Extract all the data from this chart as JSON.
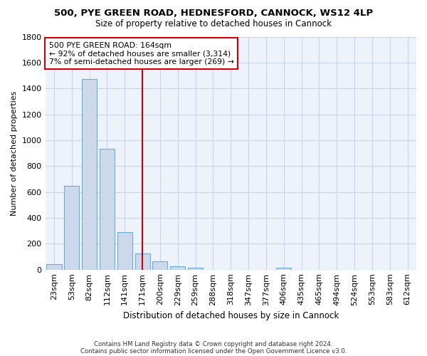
{
  "title1": "500, PYE GREEN ROAD, HEDNESFORD, CANNOCK, WS12 4LP",
  "title2": "Size of property relative to detached houses in Cannock",
  "xlabel": "Distribution of detached houses by size in Cannock",
  "ylabel": "Number of detached properties",
  "bar_labels": [
    "23sqm",
    "53sqm",
    "82sqm",
    "112sqm",
    "141sqm",
    "171sqm",
    "200sqm",
    "229sqm",
    "259sqm",
    "288sqm",
    "318sqm",
    "347sqm",
    "377sqm",
    "406sqm",
    "435sqm",
    "465sqm",
    "494sqm",
    "524sqm",
    "553sqm",
    "583sqm",
    "612sqm"
  ],
  "bar_values": [
    40,
    650,
    1470,
    935,
    290,
    125,
    65,
    25,
    15,
    0,
    0,
    0,
    0,
    15,
    0,
    0,
    0,
    0,
    0,
    0,
    0
  ],
  "bar_color": "#ccd9ea",
  "bar_edge_color": "#6aaed6",
  "grid_color": "#c8d4e8",
  "vline_x_index": 5,
  "vline_color": "#cc0000",
  "ylim": [
    0,
    1800
  ],
  "yticks": [
    0,
    200,
    400,
    600,
    800,
    1000,
    1200,
    1400,
    1600,
    1800
  ],
  "annotation_text": "500 PYE GREEN ROAD: 164sqm\n← 92% of detached houses are smaller (3,314)\n7% of semi-detached houses are larger (269) →",
  "annotation_box_color": "#cc0000",
  "footnote1": "Contains HM Land Registry data © Crown copyright and database right 2024.",
  "footnote2": "Contains public sector information licensed under the Open Government Licence v3.0.",
  "bg_color": "#eef2fb"
}
